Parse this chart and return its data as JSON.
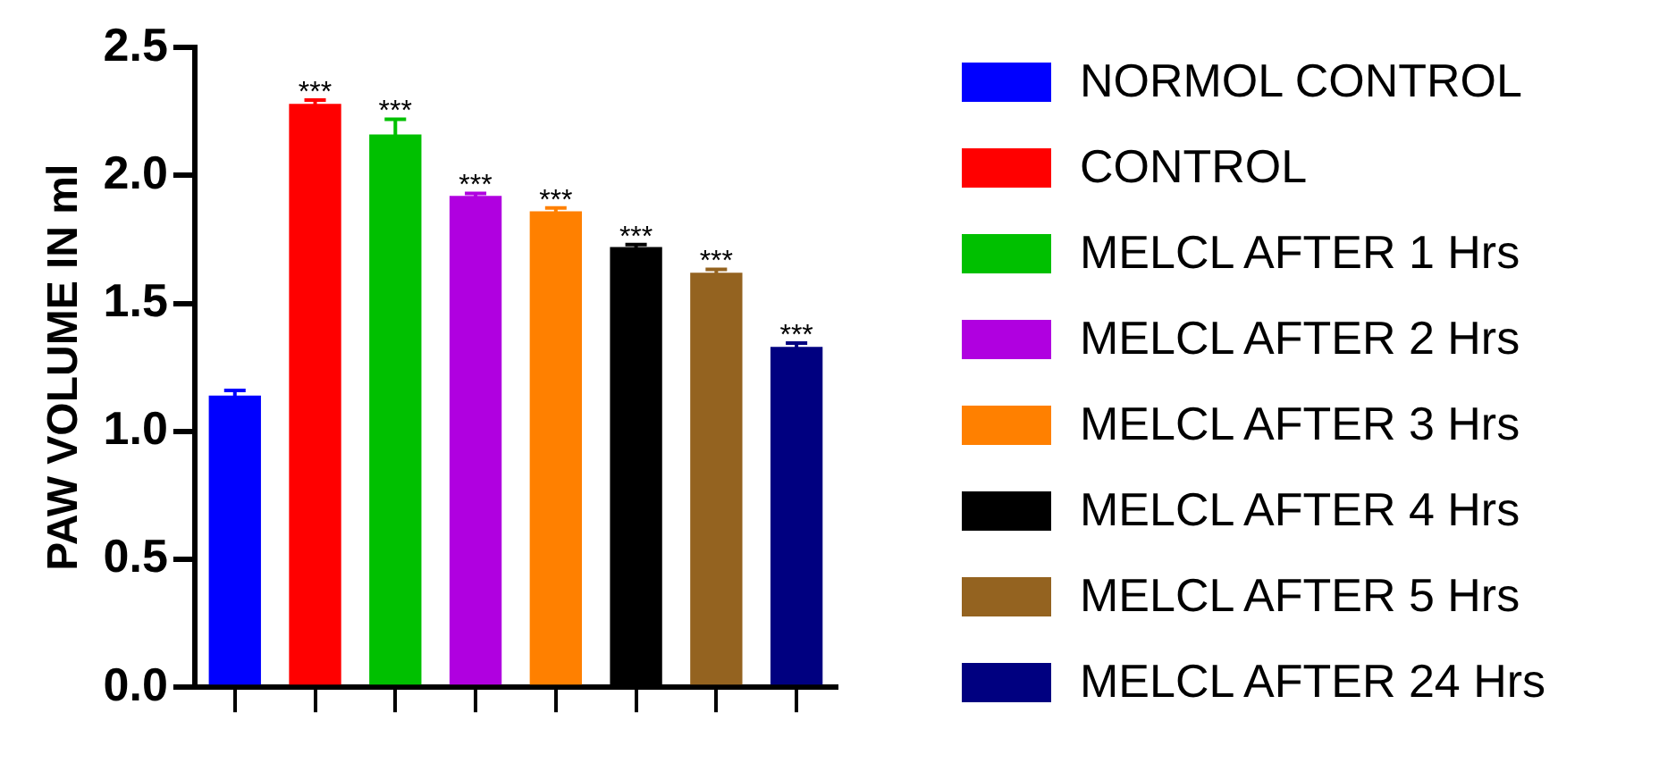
{
  "chart_data": {
    "type": "bar",
    "ylabel": "PAW VOLUME IN ml",
    "categories": [
      null,
      null,
      null,
      null,
      null,
      null,
      null,
      null
    ],
    "series": [
      {
        "name": "NORMOL CONTROL",
        "color": "#0000ff",
        "values": [
          1.14,
          null,
          null,
          null,
          null,
          null,
          null,
          null
        ],
        "errors": [
          0.02,
          null,
          null,
          null,
          null,
          null,
          null,
          null
        ]
      },
      {
        "name": "CONTROL",
        "color": "#ff0000",
        "values": [
          null,
          2.28,
          null,
          null,
          null,
          null,
          null,
          null
        ],
        "errors": [
          null,
          0.015,
          null,
          null,
          null,
          null,
          null,
          null
        ],
        "value_labels": [
          null,
          "***",
          null,
          null,
          null,
          null,
          null,
          null
        ]
      },
      {
        "name": "MELCL AFTER 1 Hrs",
        "color": "#00c000",
        "values": [
          null,
          null,
          2.16,
          null,
          null,
          null,
          null,
          null
        ],
        "errors": [
          null,
          null,
          0.06,
          null,
          null,
          null,
          null,
          null
        ],
        "value_labels": [
          null,
          null,
          "***",
          null,
          null,
          null,
          null,
          null
        ]
      },
      {
        "name": "MELCL AFTER 2 Hrs",
        "color": "#b000e0",
        "values": [
          null,
          null,
          null,
          1.92,
          null,
          null,
          null,
          null
        ],
        "errors": [
          null,
          null,
          null,
          0.01,
          null,
          null,
          null,
          null
        ],
        "value_labels": [
          null,
          null,
          null,
          "***",
          null,
          null,
          null,
          null
        ]
      },
      {
        "name": "MELCL AFTER 3 Hrs",
        "color": "#ff8000",
        "values": [
          null,
          null,
          null,
          null,
          1.86,
          null,
          null,
          null
        ],
        "errors": [
          null,
          null,
          null,
          null,
          0.013,
          null,
          null,
          null
        ],
        "value_labels": [
          null,
          null,
          null,
          null,
          "***",
          null,
          null,
          null
        ]
      },
      {
        "name": "MELCL AFTER 4 Hrs",
        "color": "#000000",
        "values": [
          null,
          null,
          null,
          null,
          null,
          1.72,
          null,
          null
        ],
        "errors": [
          null,
          null,
          null,
          null,
          null,
          0.01,
          null,
          null
        ],
        "value_labels": [
          null,
          null,
          null,
          null,
          null,
          "***",
          null,
          null
        ]
      },
      {
        "name": "MELCL AFTER 5 Hrs",
        "color": "#946320",
        "values": [
          null,
          null,
          null,
          null,
          null,
          null,
          1.62,
          null
        ],
        "errors": [
          null,
          null,
          null,
          null,
          null,
          null,
          0.013,
          null
        ],
        "value_labels": [
          null,
          null,
          null,
          null,
          null,
          null,
          "***",
          null
        ]
      },
      {
        "name": "MELCL AFTER 24 Hrs",
        "color": "#000080",
        "values": [
          null,
          null,
          null,
          null,
          null,
          null,
          null,
          1.33
        ],
        "errors": [
          null,
          null,
          null,
          null,
          null,
          null,
          null,
          0.015
        ],
        "value_labels": [
          null,
          null,
          null,
          null,
          null,
          null,
          null,
          "***"
        ]
      }
    ],
    "ylim": [
      0,
      2.5
    ],
    "yticks": [
      {
        "value": 0,
        "label": "0.0"
      },
      {
        "value": 0.5,
        "label": "0.5"
      },
      {
        "value": 1,
        "label": "1.0"
      },
      {
        "value": 1.5,
        "label": "1.5"
      },
      {
        "value": 2,
        "label": "2.0"
      },
      {
        "value": 2.5,
        "label": "2.5"
      }
    ],
    "grid": false,
    "legend": "right"
  }
}
